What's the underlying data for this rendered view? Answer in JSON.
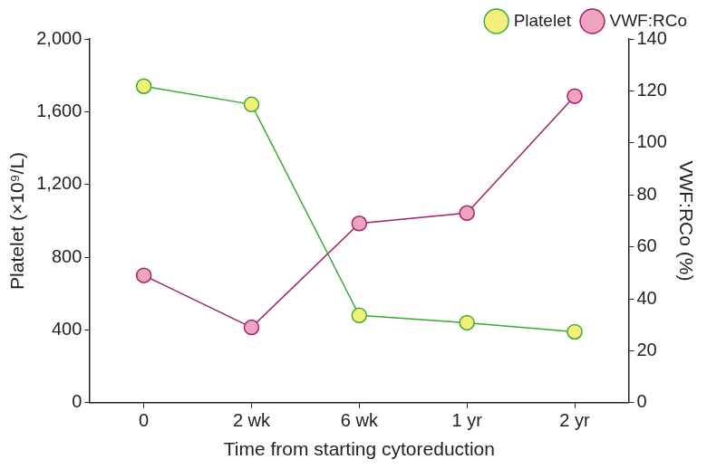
{
  "chart_data": {
    "type": "line",
    "x_label": "Time from starting cytoreduction",
    "y_label": "Platelet (×10⁹/L)",
    "y2_label": "VWF:RCo (%)",
    "categories": [
      "0",
      "2 wk",
      "6 wk",
      "1 yr",
      "2 yr"
    ],
    "series": [
      {
        "name": "Platelet",
        "color": "#3aaa35",
        "marker": "circle",
        "values": [
          1740,
          1640,
          480,
          440,
          390
        ]
      },
      {
        "name": "VWF:RCo",
        "color": "#a3206f",
        "marker": "circle",
        "axis": "y2",
        "values": [
          49,
          29,
          69,
          73,
          118
        ]
      }
    ],
    "ylim": [
      0,
      2000
    ],
    "yticks": [
      0,
      400,
      800,
      {
        "value": 1200,
        "label": "1,200"
      },
      {
        "value": 1600,
        "label": "1,600"
      },
      {
        "value": 2000,
        "label": "2,000"
      }
    ],
    "y2lim": [
      0,
      140
    ],
    "y2ticks": [
      0,
      20,
      40,
      60,
      80,
      100,
      120,
      140
    ],
    "grid": false,
    "legend": "top-right"
  }
}
